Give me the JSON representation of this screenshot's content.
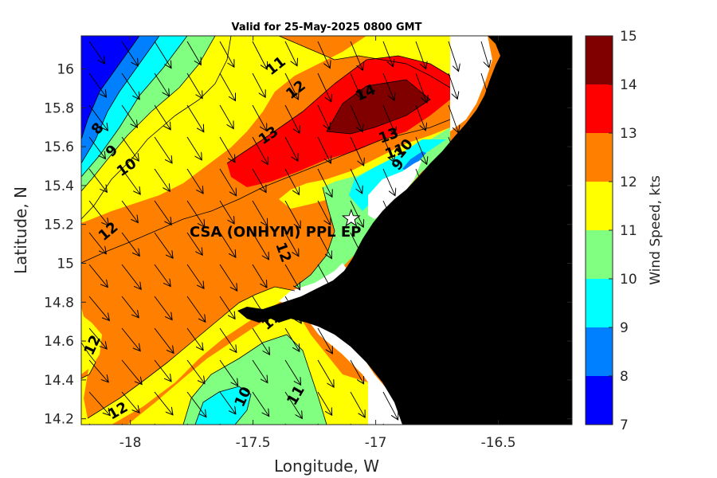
{
  "title": "Valid for 25-May-2025 0800 GMT",
  "xlabel": "Longitude, W",
  "ylabel": "Latitude, N",
  "xticks": [
    "-18",
    "-17.5",
    "-17",
    "-16.5"
  ],
  "yticks": [
    "16",
    "15.8",
    "15.6",
    "15.4",
    "15.2",
    "15",
    "14.8",
    "14.6",
    "14.4",
    "14.2"
  ],
  "colorbar": {
    "label": "Wind Speed, kts",
    "ticks": [
      "15",
      "14",
      "13",
      "12",
      "11",
      "10",
      "9",
      "8",
      "7"
    ],
    "colors": [
      "#800000",
      "#ff0000",
      "#ff8000",
      "#ffff00",
      "#80ff80",
      "#00ffff",
      "#0080ff",
      "#0000ff"
    ]
  },
  "site_label": "CSA (ONHYM) PPL EP",
  "contour_labels": [
    "8",
    "9",
    "10",
    "11",
    "12",
    "13",
    "14",
    "13",
    "11",
    "10",
    "9",
    "12",
    "12",
    "12",
    "11",
    "10",
    "11",
    "12"
  ],
  "chart_data": {
    "type": "heatmap",
    "title": "Valid for 25-May-2025 0800 GMT",
    "xlabel": "Longitude, W",
    "ylabel": "Latitude, N",
    "xlim": [
      -18.2,
      -16.2
    ],
    "ylim": [
      14.17,
      16.17
    ],
    "levels": [
      7,
      8,
      9,
      10,
      11,
      12,
      13,
      14,
      15
    ],
    "site": {
      "name": "CSA (ONHYM) PPL EP",
      "lon": -17.1,
      "lat": 15.23
    }
  }
}
